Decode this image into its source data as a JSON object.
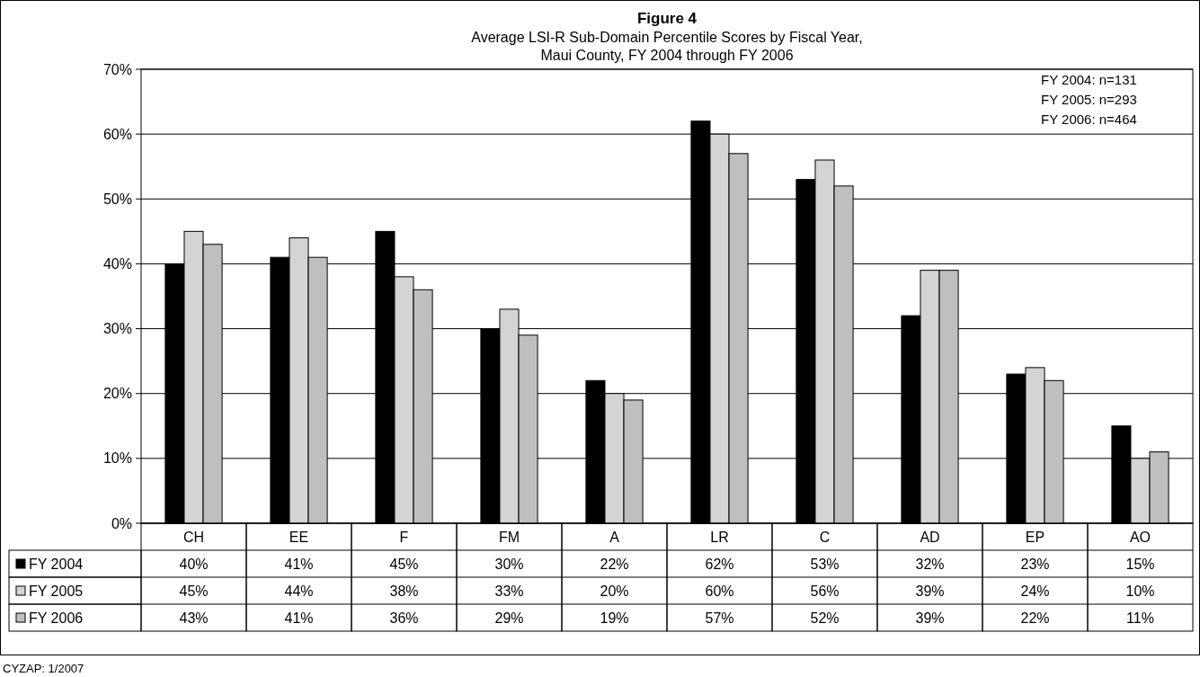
{
  "chart_data": {
    "type": "bar",
    "title": "Figure 4",
    "subtitle": "Average LSI-R Sub-Domain Percentile Scores by Fiscal Year,\nMaui County, FY 2004 through FY 2006",
    "categories": [
      "CH",
      "EE",
      "F",
      "FM",
      "A",
      "LR",
      "C",
      "AD",
      "EP",
      "AO"
    ],
    "series": [
      {
        "name": "FY 2004",
        "color": "#000000",
        "values": [
          40,
          41,
          45,
          30,
          22,
          62,
          53,
          32,
          23,
          15
        ],
        "value_labels": [
          "40%",
          "41%",
          "45%",
          "30%",
          "22%",
          "62%",
          "53%",
          "32%",
          "23%",
          "15%"
        ]
      },
      {
        "name": "FY 2005",
        "color": "#d4d4d4",
        "values": [
          45,
          44,
          38,
          33,
          20,
          60,
          56,
          39,
          24,
          10
        ],
        "value_labels": [
          "45%",
          "44%",
          "38%",
          "33%",
          "20%",
          "60%",
          "56%",
          "39%",
          "24%",
          "10%"
        ]
      },
      {
        "name": "FY 2006",
        "color": "#bfbfbf",
        "values": [
          43,
          41,
          36,
          29,
          19,
          57,
          52,
          39,
          22,
          11
        ],
        "value_labels": [
          "43%",
          "41%",
          "36%",
          "29%",
          "19%",
          "57%",
          "52%",
          "39%",
          "22%",
          "11%"
        ]
      }
    ],
    "ylim": [
      0,
      70
    ],
    "yticks": [
      {
        "value": 0,
        "label": "0%"
      },
      {
        "value": 10,
        "label": "10%"
      },
      {
        "value": 20,
        "label": "20%"
      },
      {
        "value": 30,
        "label": "30%"
      },
      {
        "value": 40,
        "label": "40%"
      },
      {
        "value": 50,
        "label": "50%"
      },
      {
        "value": 60,
        "label": "60%"
      },
      {
        "value": 70,
        "label": "70%"
      }
    ],
    "grid": "y",
    "legend": "bottom",
    "annotations": [
      {
        "text": "FY 2004: n=131"
      },
      {
        "text": "FY 2005: n=293"
      },
      {
        "text": "FY 2006: n=464"
      },
      {
        "text": "CYZAP: 1/2007"
      }
    ]
  }
}
